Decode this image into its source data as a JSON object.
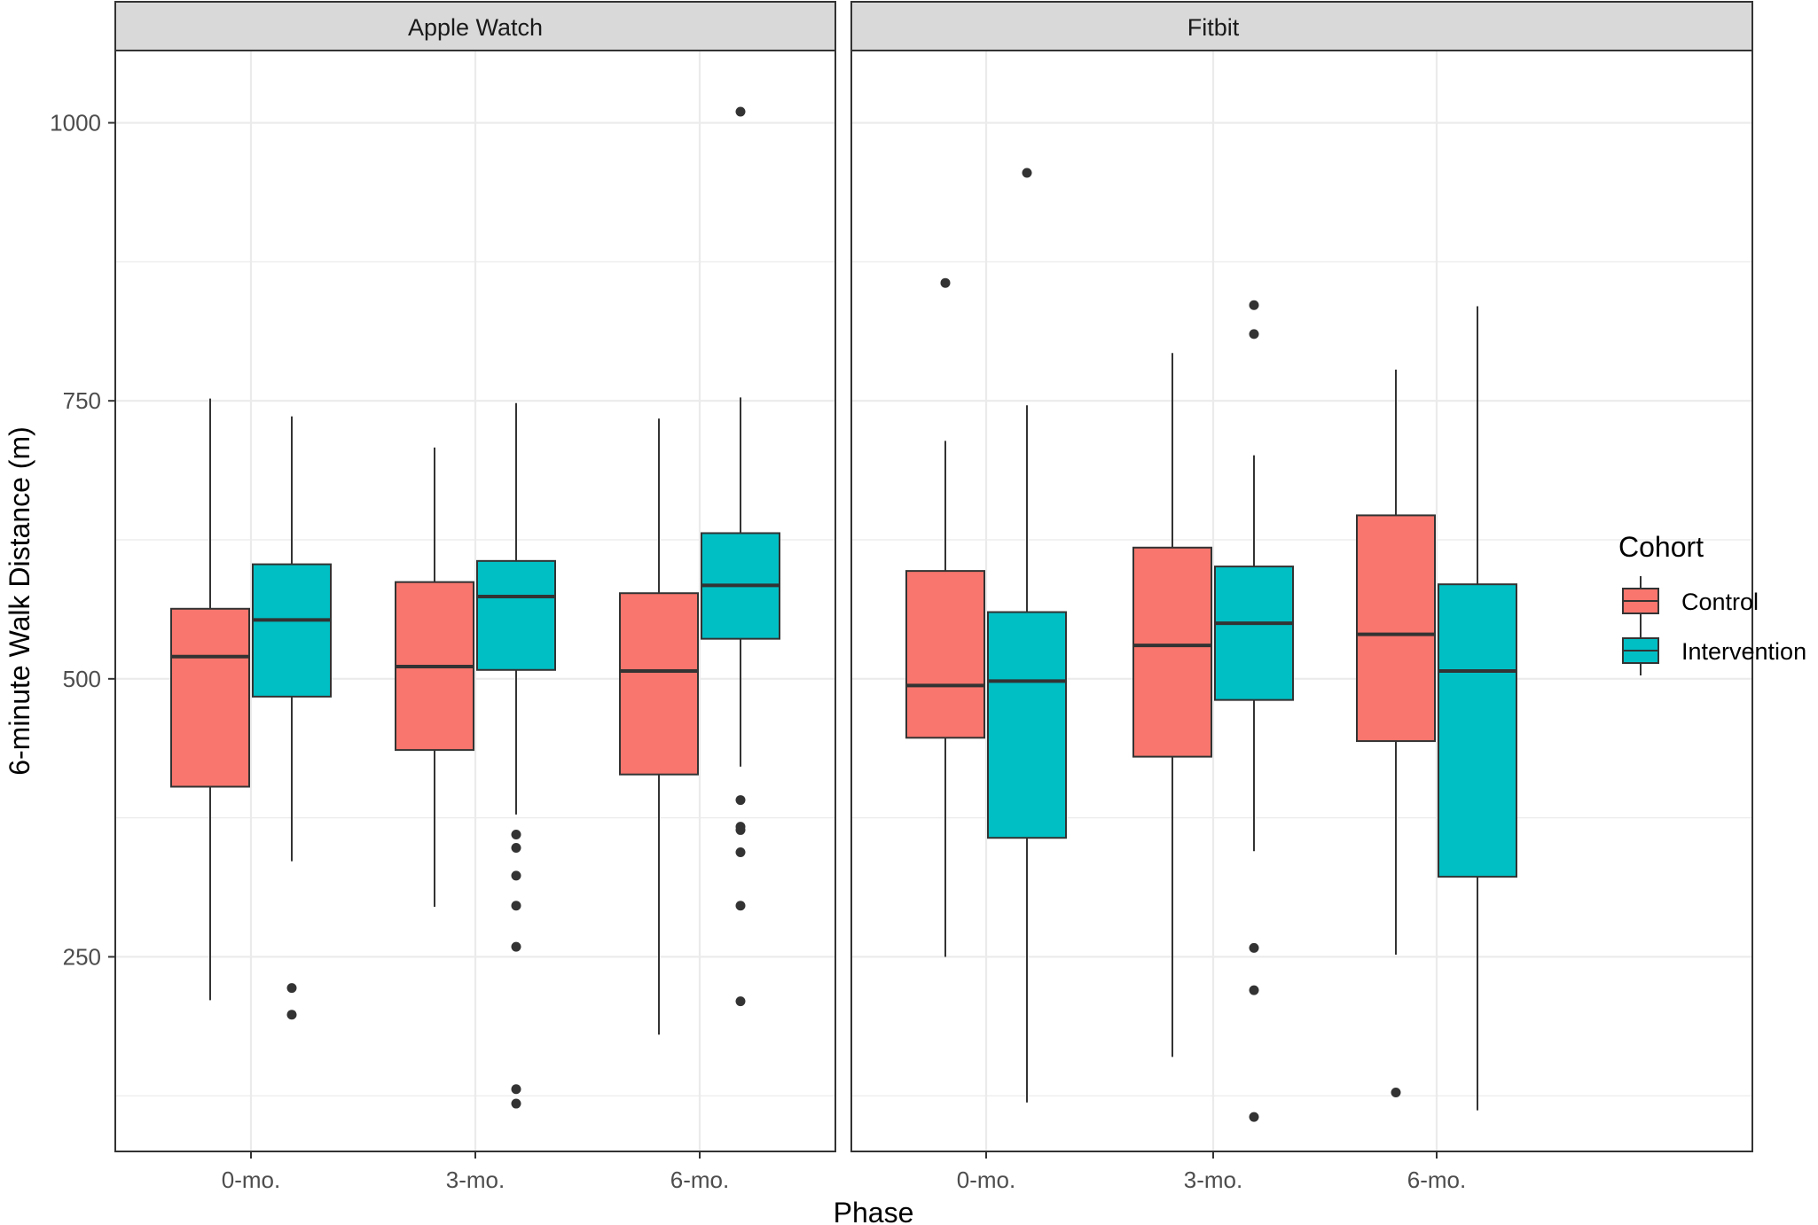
{
  "chart_data": {
    "type": "boxplot",
    "xlabel": "Phase",
    "ylabel": "6-minute Walk Distance (m)",
    "categories": [
      "0-mo.",
      "3-mo.",
      "6-mo."
    ],
    "y_ticks": [
      250,
      500,
      750,
      1000
    ],
    "ylim": [
      75,
      1065
    ],
    "grid": true,
    "legend": {
      "title": "Cohort",
      "position": "right",
      "entries": [
        {
          "name": "Control",
          "color": "#F8766D"
        },
        {
          "name": "Intervention",
          "color": "#00BFC4"
        }
      ]
    },
    "panels": [
      {
        "title": "Apple Watch",
        "groups": [
          {
            "category": "0-mo.",
            "series": "Control",
            "whisker_low": 211,
            "q1": 403,
            "median": 520,
            "q3": 563,
            "whisker_high": 752,
            "outliers": []
          },
          {
            "category": "0-mo.",
            "series": "Intervention",
            "whisker_low": 336,
            "q1": 484,
            "median": 553,
            "q3": 603,
            "whisker_high": 736,
            "outliers": [
              222,
              198
            ]
          },
          {
            "category": "3-mo.",
            "series": "Control",
            "whisker_low": 295,
            "q1": 436,
            "median": 511,
            "q3": 587,
            "whisker_high": 708,
            "outliers": []
          },
          {
            "category": "3-mo.",
            "series": "Intervention",
            "whisker_low": 378,
            "q1": 508,
            "median": 574,
            "q3": 606,
            "whisker_high": 748,
            "outliers": [
              360,
              348,
              323,
              296,
              259,
              131,
              118
            ]
          },
          {
            "category": "6-mo.",
            "series": "Control",
            "whisker_low": 180,
            "q1": 414,
            "median": 507,
            "q3": 577,
            "whisker_high": 734,
            "outliers": []
          },
          {
            "category": "6-mo.",
            "series": "Intervention",
            "whisker_low": 421,
            "q1": 536,
            "median": 584,
            "q3": 631,
            "whisker_high": 753,
            "outliers": [
              1010,
              391,
              367,
              364,
              344,
              296,
              210
            ]
          }
        ]
      },
      {
        "title": "Fitbit",
        "groups": [
          {
            "category": "0-mo.",
            "series": "Control",
            "whisker_low": 250,
            "q1": 447,
            "median": 494,
            "q3": 597,
            "whisker_high": 714,
            "outliers": [
              856
            ]
          },
          {
            "category": "0-mo.",
            "series": "Intervention",
            "whisker_low": 119,
            "q1": 357,
            "median": 498,
            "q3": 560,
            "whisker_high": 746,
            "outliers": [
              955
            ]
          },
          {
            "category": "3-mo.",
            "series": "Control",
            "whisker_low": 160,
            "q1": 430,
            "median": 530,
            "q3": 618,
            "whisker_high": 793,
            "outliers": []
          },
          {
            "category": "3-mo.",
            "series": "Intervention",
            "whisker_low": 345,
            "q1": 481,
            "median": 550,
            "q3": 601,
            "whisker_high": 701,
            "outliers": [
              836,
              810,
              258,
              220,
              106
            ]
          },
          {
            "category": "6-mo.",
            "series": "Control",
            "whisker_low": 252,
            "q1": 444,
            "median": 540,
            "q3": 647,
            "whisker_high": 778,
            "outliers": [
              128
            ]
          },
          {
            "category": "6-mo.",
            "series": "Intervention",
            "whisker_low": 112,
            "q1": 322,
            "median": 507,
            "q3": 585,
            "whisker_high": 835,
            "outliers": []
          }
        ]
      }
    ]
  }
}
